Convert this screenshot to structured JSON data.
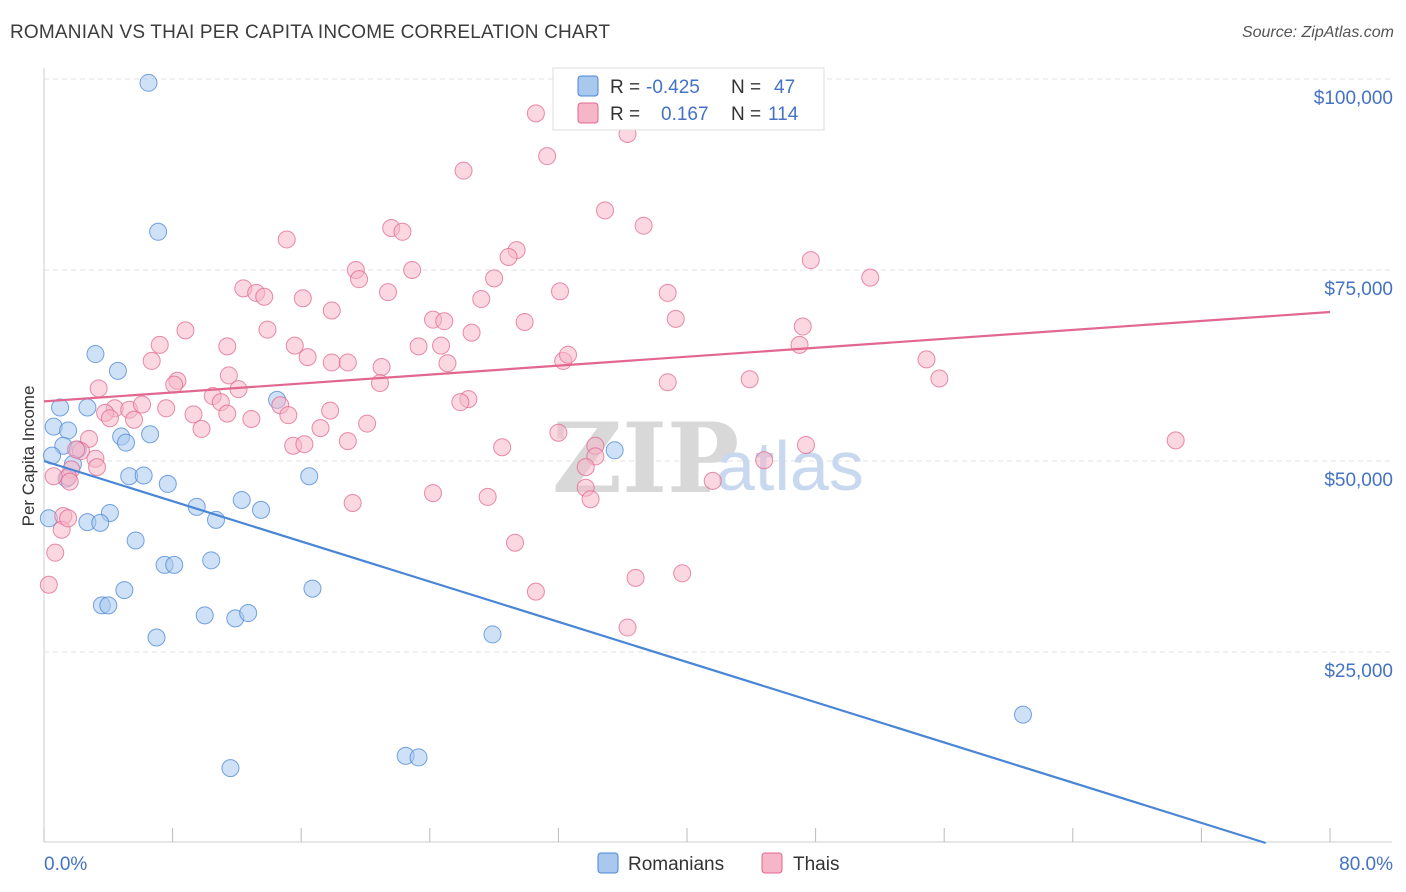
{
  "title": "ROMANIAN VS THAI PER CAPITA INCOME CORRELATION CHART",
  "source": "Source: ZipAtlas.com",
  "watermark": {
    "zip": "ZIP",
    "atlas": "atlas"
  },
  "legend_top": {
    "rows": [
      {
        "r_label": "R =",
        "r_value": "-0.425",
        "n_label": "N =",
        "n_value": "47",
        "color": "#a8c8ee"
      },
      {
        "r_label": "R =",
        "r_value": "0.167",
        "n_label": "N =",
        "n_value": "114",
        "color": "#f5b6c8"
      }
    ]
  },
  "legend_bottom": [
    {
      "label": "Romanians",
      "color": "#a8c8ee"
    },
    {
      "label": "Thais",
      "color": "#f5b6c8"
    }
  ],
  "chart_data": {
    "type": "scatter",
    "title": "ROMANIAN VS THAI PER CAPITA INCOME CORRELATION CHART",
    "xlabel": "",
    "ylabel": "Per Capita Income",
    "xlim": [
      0,
      80
    ],
    "ylim": [
      0,
      105000
    ],
    "x_tick_labels": [
      "0.0%",
      "80.0%"
    ],
    "y_ticks": [
      25000,
      50000,
      75000,
      100000
    ],
    "y_tick_labels": [
      "$25,000",
      "$50,000",
      "$75,000",
      "$100,000"
    ],
    "grid": true,
    "legend_position": "top-center",
    "series": [
      {
        "name": "Romanians",
        "color": "#4a86d6",
        "fill": "#a8c8ee",
        "trend": {
          "x": [
            0,
            76
          ],
          "y": [
            50000,
            0
          ]
        },
        "points": [
          [
            6.5,
            99500
          ],
          [
            7.1,
            80000
          ],
          [
            3.2,
            64000
          ],
          [
            4.6,
            61800
          ],
          [
            2.7,
            57000
          ],
          [
            1.0,
            57000
          ],
          [
            0.6,
            54500
          ],
          [
            1.5,
            54000
          ],
          [
            4.8,
            53200
          ],
          [
            5.1,
            52400
          ],
          [
            6.6,
            53500
          ],
          [
            1.2,
            52000
          ],
          [
            2.1,
            51500
          ],
          [
            0.5,
            50700
          ],
          [
            1.8,
            49600
          ],
          [
            1.4,
            47700
          ],
          [
            5.3,
            48000
          ],
          [
            6.2,
            48100
          ],
          [
            7.7,
            47000
          ],
          [
            14.5,
            58000
          ],
          [
            16.5,
            48000
          ],
          [
            35.5,
            51400
          ],
          [
            9.5,
            44000
          ],
          [
            12.3,
            44900
          ],
          [
            13.5,
            43600
          ],
          [
            4.1,
            43200
          ],
          [
            10.7,
            42300
          ],
          [
            2.7,
            42000
          ],
          [
            3.5,
            41900
          ],
          [
            5.7,
            39600
          ],
          [
            0.3,
            42500
          ],
          [
            10.4,
            37000
          ],
          [
            7.5,
            36400
          ],
          [
            8.1,
            36400
          ],
          [
            5.0,
            33100
          ],
          [
            16.7,
            33300
          ],
          [
            3.6,
            31100
          ],
          [
            4.0,
            31100
          ],
          [
            10.0,
            29800
          ],
          [
            11.9,
            29400
          ],
          [
            12.7,
            30100
          ],
          [
            7.0,
            26900
          ],
          [
            27.9,
            27300
          ],
          [
            60.9,
            16800
          ],
          [
            11.6,
            9800
          ],
          [
            22.5,
            11400
          ],
          [
            23.3,
            11200
          ]
        ]
      },
      {
        "name": "Thais",
        "color": "#e2678f",
        "fill": "#f5b6c8",
        "trend": {
          "x": [
            0,
            80
          ],
          "y": [
            57800,
            69500
          ]
        },
        "points": [
          [
            30.6,
            95500
          ],
          [
            36.3,
            92800
          ],
          [
            31.3,
            89900
          ],
          [
            26.1,
            88000
          ],
          [
            34.9,
            82800
          ],
          [
            37.3,
            80800
          ],
          [
            21.6,
            80500
          ],
          [
            22.3,
            80000
          ],
          [
            15.1,
            79000
          ],
          [
            29.4,
            77600
          ],
          [
            28.9,
            76700
          ],
          [
            47.7,
            76300
          ],
          [
            19.4,
            75000
          ],
          [
            22.9,
            75000
          ],
          [
            51.4,
            74000
          ],
          [
            19.6,
            73800
          ],
          [
            28.0,
            73900
          ],
          [
            12.4,
            72600
          ],
          [
            13.2,
            72000
          ],
          [
            13.7,
            71500
          ],
          [
            21.4,
            72100
          ],
          [
            32.1,
            72200
          ],
          [
            38.8,
            72000
          ],
          [
            16.1,
            71300
          ],
          [
            27.2,
            71200
          ],
          [
            17.9,
            69700
          ],
          [
            24.2,
            68500
          ],
          [
            24.9,
            68300
          ],
          [
            29.9,
            68200
          ],
          [
            39.3,
            68600
          ],
          [
            47.2,
            67600
          ],
          [
            8.8,
            67100
          ],
          [
            13.9,
            67200
          ],
          [
            26.6,
            66800
          ],
          [
            7.2,
            65200
          ],
          [
            11.4,
            65000
          ],
          [
            15.6,
            65100
          ],
          [
            23.3,
            65000
          ],
          [
            24.7,
            65100
          ],
          [
            47.0,
            65200
          ],
          [
            16.4,
            63600
          ],
          [
            17.9,
            62900
          ],
          [
            18.9,
            62900
          ],
          [
            21.0,
            62300
          ],
          [
            25.1,
            62800
          ],
          [
            32.3,
            63100
          ],
          [
            32.6,
            63900
          ],
          [
            54.9,
            63300
          ],
          [
            6.7,
            63100
          ],
          [
            11.5,
            61200
          ],
          [
            8.3,
            60500
          ],
          [
            8.1,
            60000
          ],
          [
            20.9,
            60200
          ],
          [
            38.8,
            60300
          ],
          [
            43.9,
            60700
          ],
          [
            55.7,
            60800
          ],
          [
            3.4,
            59500
          ],
          [
            12.1,
            59400
          ],
          [
            10.5,
            58500
          ],
          [
            11.0,
            57700
          ],
          [
            26.4,
            58100
          ],
          [
            25.9,
            57700
          ],
          [
            14.7,
            57300
          ],
          [
            4.4,
            56900
          ],
          [
            5.3,
            56700
          ],
          [
            6.1,
            57400
          ],
          [
            7.6,
            56900
          ],
          [
            9.3,
            56100
          ],
          [
            11.4,
            56200
          ],
          [
            17.8,
            56600
          ],
          [
            3.8,
            56300
          ],
          [
            4.1,
            55600
          ],
          [
            12.9,
            55500
          ],
          [
            15.2,
            56000
          ],
          [
            20.1,
            54900
          ],
          [
            5.6,
            55400
          ],
          [
            9.8,
            54200
          ],
          [
            17.2,
            54300
          ],
          [
            32.0,
            53700
          ],
          [
            34.3,
            52000
          ],
          [
            2.8,
            52900
          ],
          [
            18.9,
            52600
          ],
          [
            15.5,
            52000
          ],
          [
            16.2,
            52200
          ],
          [
            28.5,
            51800
          ],
          [
            47.4,
            52100
          ],
          [
            70.4,
            52700
          ],
          [
            2.3,
            51300
          ],
          [
            3.2,
            50300
          ],
          [
            34.3,
            50600
          ],
          [
            44.8,
            50100
          ],
          [
            33.7,
            49200
          ],
          [
            1.7,
            48900
          ],
          [
            1.5,
            47900
          ],
          [
            1.6,
            47300
          ],
          [
            41.6,
            47400
          ],
          [
            33.7,
            46500
          ],
          [
            24.2,
            45800
          ],
          [
            34.0,
            45000
          ],
          [
            27.6,
            45300
          ],
          [
            19.2,
            44500
          ],
          [
            1.2,
            42800
          ],
          [
            1.1,
            41000
          ],
          [
            0.7,
            38000
          ],
          [
            29.3,
            39300
          ],
          [
            39.7,
            35300
          ],
          [
            36.8,
            34700
          ],
          [
            30.6,
            32900
          ],
          [
            36.3,
            28200
          ],
          [
            0.3,
            33800
          ],
          [
            1.5,
            42500
          ],
          [
            2.0,
            51500
          ],
          [
            0.6,
            48000
          ],
          [
            3.3,
            49200
          ]
        ]
      }
    ]
  }
}
